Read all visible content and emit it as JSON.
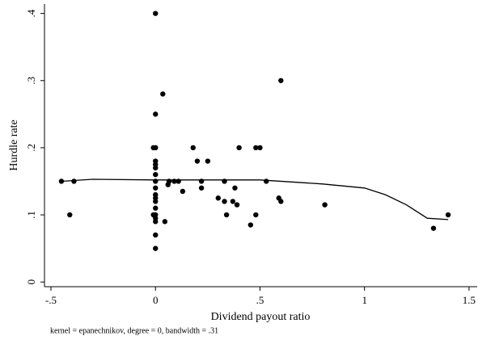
{
  "chart_data": {
    "type": "scatter",
    "xlabel": "Dividend payout ratio",
    "ylabel": "Hurdle rate",
    "note": "kernel = epanechnikov, degree = 0, bandwidth = .31",
    "xlim": [
      -0.531,
      1.539
    ],
    "ylim": [
      -0.007,
      0.414
    ],
    "xticks": [
      {
        "value": -0.5,
        "label": "-.5"
      },
      0,
      {
        "value": 0.5,
        "label": ".5"
      },
      1,
      1.5
    ],
    "yticks": [
      0,
      {
        "value": 0.1,
        "label": ".1"
      },
      {
        "value": 0.2,
        "label": ".2"
      },
      {
        "value": 0.3,
        "label": ".3"
      },
      {
        "value": 0.4,
        "label": ".4"
      }
    ],
    "points": {
      "color": "#000000",
      "x": [
        -0.45,
        -0.41,
        -0.39,
        0,
        0,
        0,
        0,
        0,
        0,
        0,
        0,
        0,
        0,
        0,
        0,
        0,
        0,
        0,
        0,
        0,
        0,
        0,
        -0.01,
        -0.01,
        0.035,
        0.045,
        0.06,
        0.065,
        0.09,
        0.11,
        0.13,
        0.18,
        0.2,
        0.22,
        0.22,
        0.25,
        0.3,
        0.33,
        0.33,
        0.34,
        0.37,
        0.38,
        0.39,
        0.4,
        0.455,
        0.48,
        0.48,
        0.5,
        0.53,
        0.59,
        0.6,
        0.6,
        0.81,
        1.33,
        1.4
      ],
      "y": [
        0.15,
        0.1,
        0.15,
        0.4,
        0.25,
        0.2,
        0.18,
        0.175,
        0.17,
        0.16,
        0.15,
        0.14,
        0.13,
        0.125,
        0.12,
        0.11,
        0.1,
        0.095,
        0.09,
        0.07,
        0.05,
        0.2,
        0.2,
        0.1,
        0.28,
        0.09,
        0.145,
        0.15,
        0.15,
        0.15,
        0.135,
        0.2,
        0.18,
        0.15,
        0.14,
        0.18,
        0.125,
        0.15,
        0.12,
        0.1,
        0.12,
        0.14,
        0.115,
        0.2,
        0.085,
        0.2,
        0.1,
        0.2,
        0.15,
        0.125,
        0.3,
        0.12,
        0.115,
        0.08,
        0.1
      ]
    },
    "fit": {
      "color": "#000000",
      "x": [
        -0.45,
        -0.3,
        0,
        0.5,
        0.8,
        1.0,
        1.1,
        1.2,
        1.3,
        1.4
      ],
      "y": [
        0.15,
        0.153,
        0.152,
        0.152,
        0.146,
        0.14,
        0.13,
        0.115,
        0.095,
        0.093
      ]
    }
  }
}
